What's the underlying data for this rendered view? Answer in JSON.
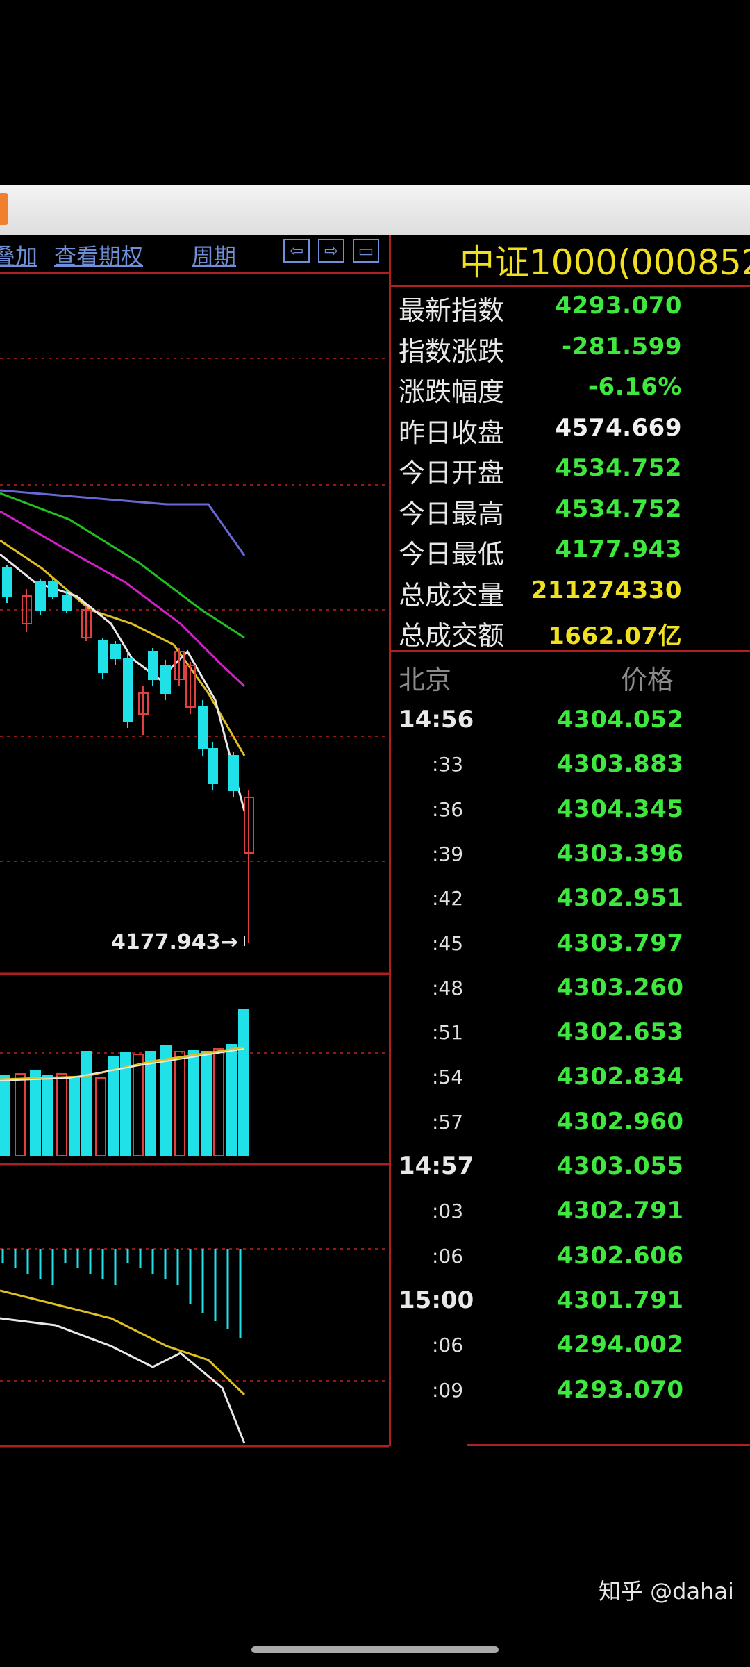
{
  "menu": {
    "add_label": "叠加",
    "options_label": "查看期权",
    "period_label": "周期",
    "nav_left": "⇦",
    "nav_right": "⇨",
    "nav_layout": "▭"
  },
  "info": {
    "title": "中证1000(000852",
    "rows": [
      {
        "label": "最新指数",
        "value": "4293.070",
        "color": "#3ee83e"
      },
      {
        "label": "指数涨跌",
        "value": "-281.599",
        "color": "#3ee83e"
      },
      {
        "label": "涨跌幅度",
        "value": "-6.16%",
        "color": "#3ee83e"
      },
      {
        "label": "昨日收盘",
        "value": "4574.669",
        "color": "#f0f0f0"
      },
      {
        "label": "今日开盘",
        "value": "4534.752",
        "color": "#3ee83e"
      },
      {
        "label": "今日最高",
        "value": "4534.752",
        "color": "#3ee83e"
      },
      {
        "label": "今日最低",
        "value": "4177.943",
        "color": "#3ee83e"
      },
      {
        "label": "总成交量",
        "value": "211274330",
        "color": "#f0e020"
      },
      {
        "label": "总成交额",
        "value": "1662.07亿",
        "color": "#f0e020"
      }
    ]
  },
  "ticks": {
    "header_place": "北京",
    "header_price": "价格",
    "rows": [
      {
        "time": "14:56",
        "price": "4304.052",
        "major": true
      },
      {
        "time": ":33",
        "price": "4303.883",
        "major": false
      },
      {
        "time": ":36",
        "price": "4304.345",
        "major": false
      },
      {
        "time": ":39",
        "price": "4303.396",
        "major": false
      },
      {
        "time": ":42",
        "price": "4302.951",
        "major": false
      },
      {
        "time": ":45",
        "price": "4303.797",
        "major": false
      },
      {
        "time": ":48",
        "price": "4303.260",
        "major": false
      },
      {
        "time": ":51",
        "price": "4302.653",
        "major": false
      },
      {
        "time": ":54",
        "price": "4302.834",
        "major": false
      },
      {
        "time": ":57",
        "price": "4302.960",
        "major": false
      },
      {
        "time": "14:57",
        "price": "4303.055",
        "major": true
      },
      {
        "time": ":03",
        "price": "4302.791",
        "major": false
      },
      {
        "time": ":06",
        "price": "4302.606",
        "major": false
      },
      {
        "time": "15:00",
        "price": "4301.791",
        "major": true
      },
      {
        "time": ":06",
        "price": "4294.002",
        "major": false
      },
      {
        "time": ":09",
        "price": "4293.070",
        "major": false
      }
    ]
  },
  "chart_data": {
    "type": "candlestick",
    "low_annotation": "4177.943→",
    "colors": {
      "up": "#e04040",
      "down": "#20e0e8",
      "ma1": "#e8e8e8",
      "ma2": "#e0c020",
      "ma3": "#d020c8",
      "ma4": "#20c020",
      "ma5": "#6868d8"
    }
  },
  "watermark": "知乎 @dahai"
}
